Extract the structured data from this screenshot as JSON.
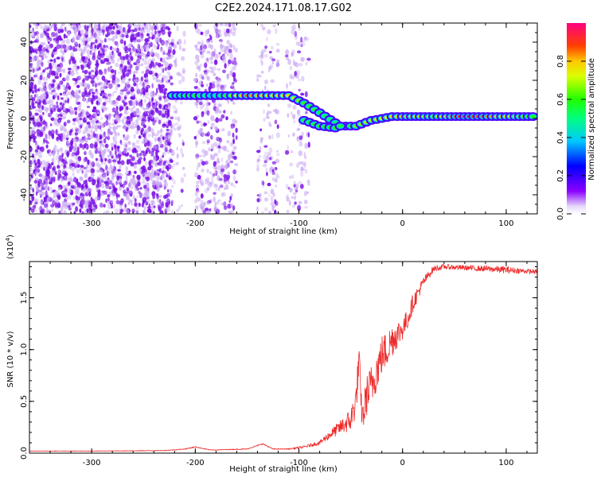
{
  "title": "C2E2.2024.171.08.17.G02",
  "chart_data": [
    {
      "type": "heatmap",
      "xlabel": "Height of straight line (km)",
      "ylabel": "Frequency (Hz)",
      "xlim": [
        -360,
        130
      ],
      "ylim": [
        -50,
        50
      ],
      "xticks": [
        -300,
        -200,
        -100,
        0,
        100
      ],
      "yticks": [
        -40,
        -20,
        0,
        20,
        40
      ],
      "colorbar": {
        "label": "Normalized spectral amplitude",
        "range": [
          0,
          1
        ],
        "ticks": [
          "0.0",
          "0.2",
          "0.4",
          "0.6",
          "0.8"
        ],
        "colormap": "rainbow"
      },
      "noise_regions": [
        {
          "x": [
            -360,
            -222
          ],
          "density": 1.0
        },
        {
          "x": [
            -222,
            -210
          ],
          "density": 0.25
        },
        {
          "x": [
            -200,
            -160
          ],
          "density": 0.6
        },
        {
          "x": [
            -140,
            -120
          ],
          "density": 0.35
        },
        {
          "x": [
            -112,
            -90
          ],
          "density": 0.3
        }
      ],
      "ridge": [
        {
          "x": -222,
          "y": 12,
          "amp": 0.45
        },
        {
          "x": -200,
          "y": 12,
          "amp": 0.55
        },
        {
          "x": -185,
          "y": 12,
          "amp": 0.35
        },
        {
          "x": -170,
          "y": 12,
          "amp": 0.55
        },
        {
          "x": -150,
          "y": 12,
          "amp": 0.8
        },
        {
          "x": -130,
          "y": 12,
          "amp": 0.7
        },
        {
          "x": -110,
          "y": 12,
          "amp": 0.7
        },
        {
          "x": -95,
          "y": 8,
          "amp": 0.55
        },
        {
          "x": -80,
          "y": 3,
          "amp": 0.5
        },
        {
          "x": -60,
          "y": -4,
          "amp": 0.45
        },
        {
          "x": -45,
          "y": -4,
          "amp": 0.6
        },
        {
          "x": -30,
          "y": -1,
          "amp": 0.65
        },
        {
          "x": -10,
          "y": 1,
          "amp": 0.7
        },
        {
          "x": 0,
          "y": 1,
          "amp": 0.75
        },
        {
          "x": 30,
          "y": 1,
          "amp": 0.6
        },
        {
          "x": 60,
          "y": 1,
          "amp": 0.9
        },
        {
          "x": 100,
          "y": 1,
          "amp": 0.7
        },
        {
          "x": 130,
          "y": 1,
          "amp": 0.5
        }
      ],
      "lower_branch": [
        {
          "x": -95,
          "y": -1,
          "amp": 0.5
        },
        {
          "x": -80,
          "y": -4,
          "amp": 0.55
        },
        {
          "x": -65,
          "y": -5,
          "amp": 0.55
        },
        {
          "x": -55,
          "y": -3,
          "amp": 0.5
        }
      ],
      "colors": {
        "noise": "#7a10e8",
        "noise_light": "#c9a8f2"
      }
    },
    {
      "type": "line",
      "xlabel": "Height of straight line (km)",
      "ylabel": "SNR (10 * v/v)",
      "ylabel_scale": "(x10",
      "ylabel_scale_exp": "4",
      "ylabel_scale_close": ")",
      "xlim": [
        -360,
        130
      ],
      "ylim": [
        0,
        18500
      ],
      "xticks": [
        -300,
        -200,
        -100,
        0,
        100
      ],
      "yticks": [
        0,
        5000,
        10000,
        15000
      ],
      "ytick_labels": [
        "0.0",
        "0.5",
        "1.0",
        "1.5"
      ],
      "series": [
        {
          "color": "#ee2a2a",
          "x": [
            -360,
            -300,
            -230,
            -210,
            -200,
            -185,
            -150,
            -135,
            -125,
            -110,
            -95,
            -80,
            -70,
            -60,
            -50,
            -45,
            -42,
            -40,
            -38,
            -35,
            -30,
            -25,
            -20,
            -15,
            -10,
            -5,
            0,
            5,
            10,
            15,
            20,
            25,
            30,
            40,
            60,
            80,
            100,
            115,
            130
          ],
          "y": [
            200,
            200,
            250,
            400,
            600,
            300,
            400,
            900,
            400,
            400,
            600,
            1000,
            1800,
            2500,
            3200,
            5000,
            9000,
            4500,
            3500,
            5500,
            6500,
            8000,
            9500,
            10000,
            11000,
            11500,
            12000,
            13000,
            14500,
            15500,
            16500,
            17200,
            17800,
            18000,
            17900,
            17800,
            17700,
            17600,
            17500
          ],
          "noise": [
            20,
            20,
            30,
            40,
            40,
            30,
            40,
            60,
            40,
            40,
            120,
            200,
            450,
            700,
            1200,
            1600,
            1800,
            1500,
            1500,
            2000,
            2200,
            2000,
            2000,
            1800,
            1700,
            1400,
            1100,
            1000,
            900,
            700,
            500,
            400,
            300,
            250,
            250,
            300,
            350,
            250,
            200
          ]
        }
      ]
    }
  ]
}
